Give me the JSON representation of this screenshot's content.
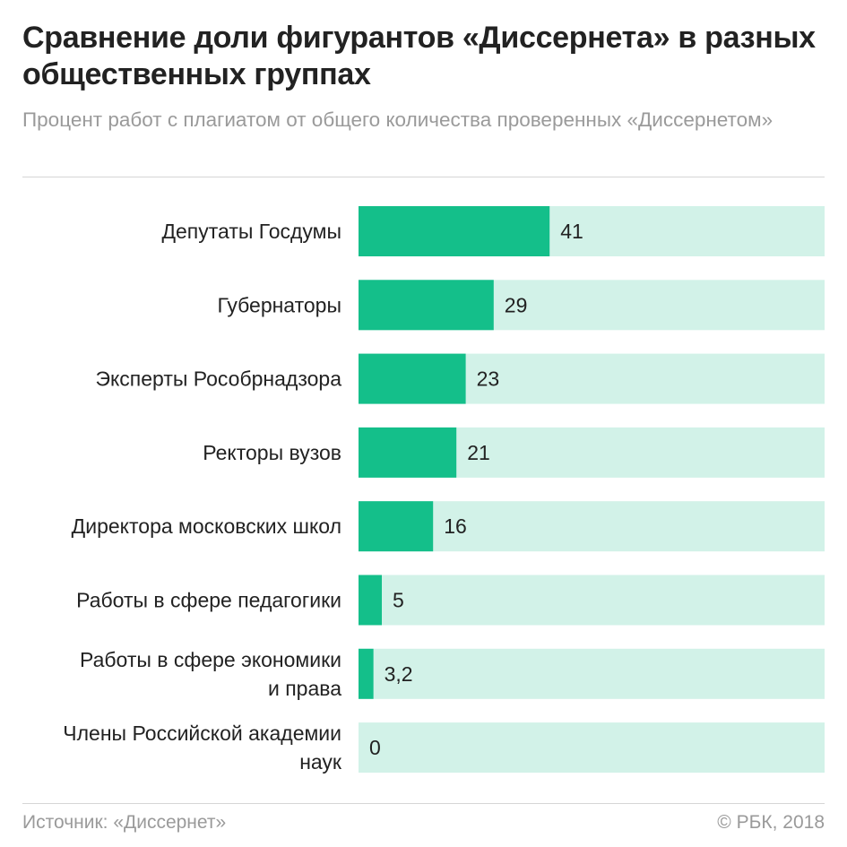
{
  "header": {
    "title": "Сравнение доли фигурантов «Диссернета» в разных общественных группах",
    "subtitle": "Процент работ с плагиатом от общего количества проверенных «Диссернетом»"
  },
  "footer": {
    "source": "Источник: «Диссернет»",
    "copyright": "© РБК, 2018"
  },
  "colors": {
    "bar": "#14bf8a",
    "track": "#d2f2e8"
  },
  "chart_data": {
    "type": "bar",
    "orientation": "horizontal",
    "categories": [
      [
        "Депутаты Госдумы"
      ],
      [
        "Губернаторы"
      ],
      [
        "Эксперты Рособрнадзора"
      ],
      [
        "Ректоры вузов"
      ],
      [
        "Директора московских школ"
      ],
      [
        "Работы в сфере педагогики"
      ],
      [
        "Работы в сфере экономики",
        "и права"
      ],
      [
        "Члены Российской академии",
        "наук"
      ]
    ],
    "values": [
      41,
      29,
      23,
      21,
      16,
      5,
      3.2,
      0
    ],
    "value_labels": [
      "41",
      "29",
      "23",
      "21",
      "16",
      "5",
      "3,2",
      "0"
    ],
    "xlim": [
      0,
      100
    ],
    "grid": false,
    "legend": "none"
  }
}
